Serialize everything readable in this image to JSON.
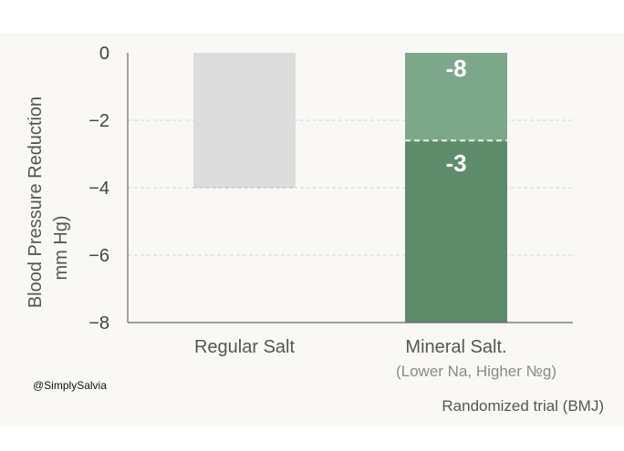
{
  "chart_data": {
    "type": "bar",
    "ylabel_line1": "Blood Pressure Reduction",
    "ylabel_line2": "mm Hg)",
    "ylim": [
      -8,
      0
    ],
    "yticks": [
      0,
      -2,
      -4,
      -6,
      -8
    ],
    "ytick_labels": [
      "0",
      "−2",
      "−4",
      "−6",
      "−8"
    ],
    "grid": true,
    "categories": [
      "Regular Salt",
      "Mineral Salt."
    ],
    "category_sublabels": [
      "",
      "(Lower Na, Higher №g)"
    ],
    "values": [
      -4,
      -8
    ],
    "segments": [
      {
        "category": "Mineral Salt.",
        "from": 0,
        "to": -2.6,
        "label": "-8"
      },
      {
        "category": "Mineral Salt.",
        "from": -2.6,
        "to": -8,
        "label": "-3"
      }
    ],
    "colors": {
      "regular": "#dcdcdc",
      "mineral_top": "#7da78a",
      "mineral_bottom": "#5e8c6b",
      "axis": "#666666",
      "grid": "#d8d8d8",
      "tick_text": "#444444",
      "category_text": "#555555",
      "sublabel_text": "#8a8a8a"
    }
  },
  "watermark": "@SimplySalvia",
  "source_note": "Randomized trial (BMJ)"
}
